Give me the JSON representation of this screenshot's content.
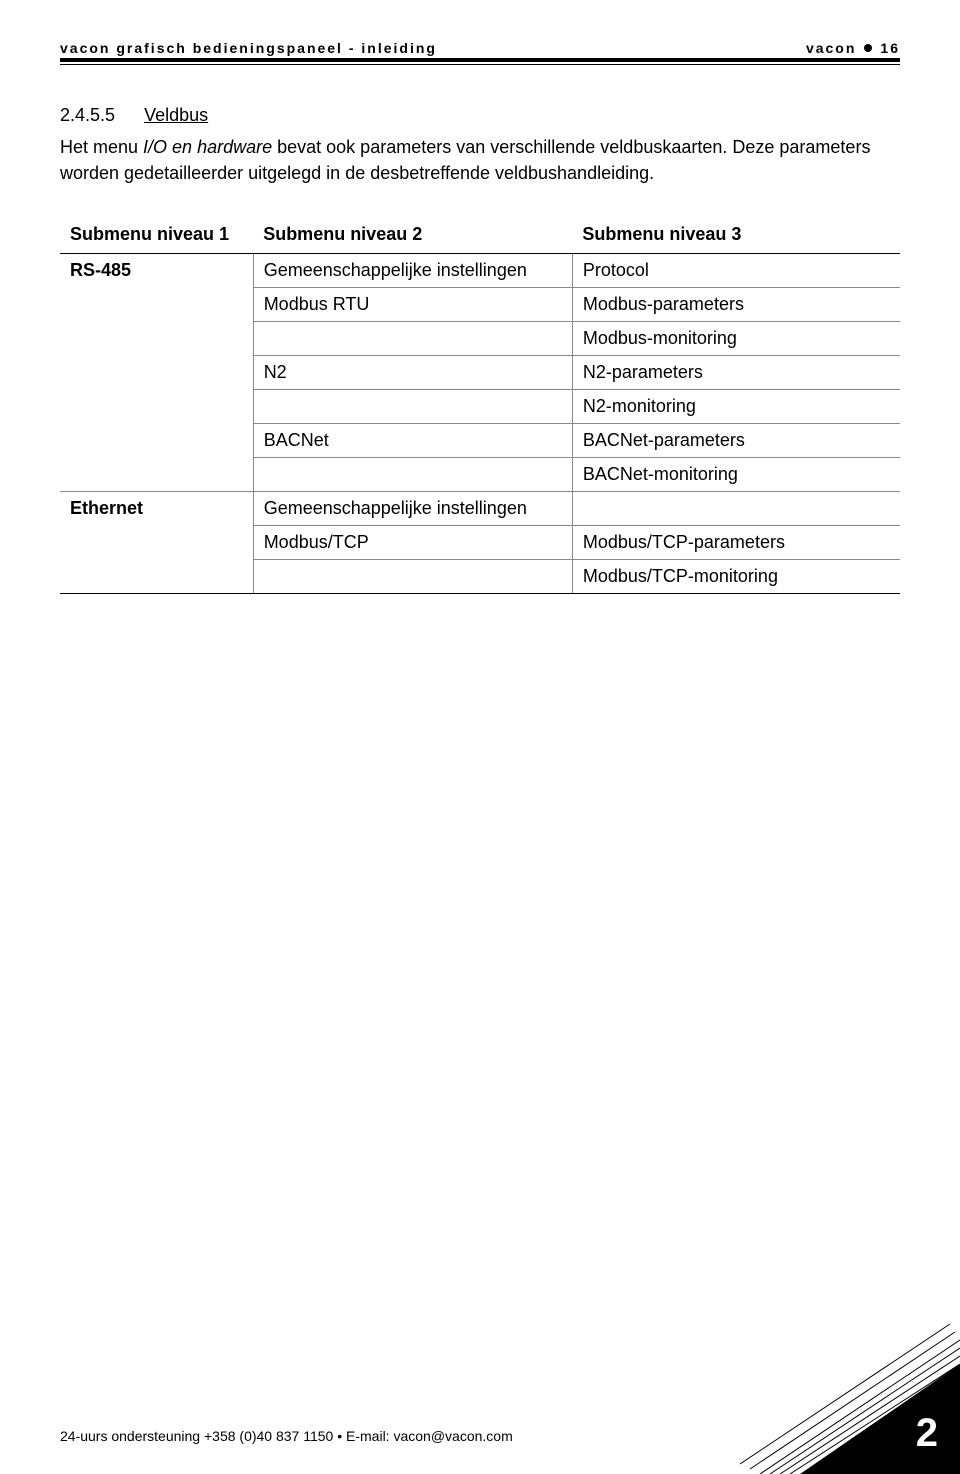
{
  "header": {
    "left": "Vacon grafisch bedieningspaneel - inleiding",
    "right_brand": "vacon",
    "right_page": "16"
  },
  "section": {
    "number": "2.4.5.5",
    "title": "Veldbus"
  },
  "paragraph": {
    "before_italic": "Het menu ",
    "italic": "I/O en hardware",
    "after_italic": " bevat ook parameters van verschillende veldbuskaarten. Deze parameters worden gedetailleerder uitgelegd in de desbetreffende veldbushandleiding."
  },
  "table": {
    "headers": [
      "Submenu niveau 1",
      "Submenu niveau 2",
      "Submenu niveau 3"
    ],
    "rows": [
      {
        "cells": [
          "RS-485",
          "Gemeenschappelijke instellingen",
          "Protocol"
        ],
        "bold1": true
      },
      {
        "cells": [
          "",
          "Modbus RTU",
          "Modbus-parameters"
        ]
      },
      {
        "cells": [
          "",
          "",
          "Modbus-monitoring"
        ]
      },
      {
        "cells": [
          "",
          "N2",
          "N2-parameters"
        ]
      },
      {
        "cells": [
          "",
          "",
          "N2-monitoring"
        ]
      },
      {
        "cells": [
          "",
          "BACNet",
          "BACNet-parameters"
        ]
      },
      {
        "cells": [
          "",
          "",
          "BACNet-monitoring"
        ]
      },
      {
        "cells": [
          "Ethernet",
          "Gemeenschappelijke instellingen",
          ""
        ],
        "bold1": true
      },
      {
        "cells": [
          "",
          "Modbus/TCP",
          "Modbus/TCP-parameters"
        ]
      },
      {
        "cells": [
          "",
          "",
          "Modbus/TCP-monitoring"
        ],
        "last": true
      }
    ]
  },
  "footer": {
    "text": "24-uurs ondersteuning +358 (0)40 837 1150 • E-mail: vacon@vacon.com"
  },
  "chapter_number": "2"
}
